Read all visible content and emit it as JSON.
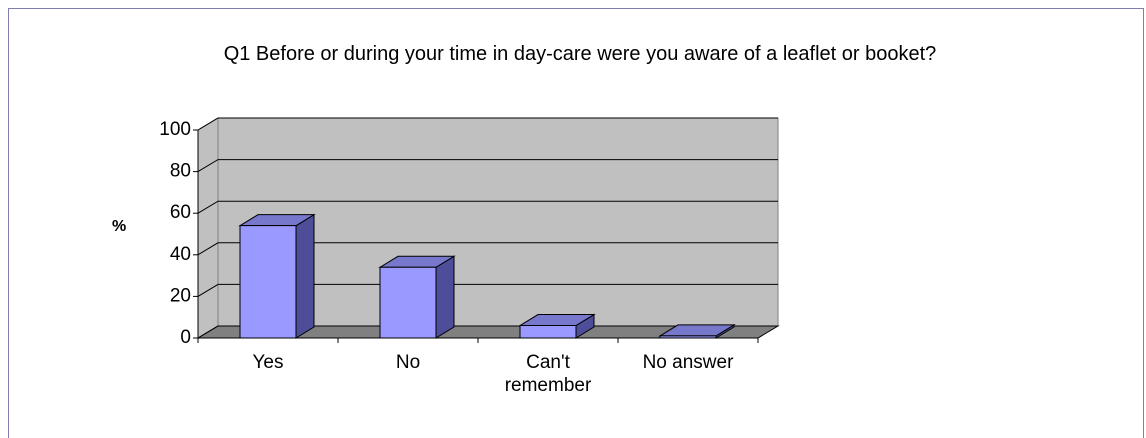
{
  "chart_data": {
    "type": "bar3d",
    "title": "Q1 Before or during your time in day-care were you aware of a leaflet or booket?",
    "y_label": "%",
    "categories": [
      "Yes",
      "No",
      "Can't remember",
      "No answer"
    ],
    "values": [
      54,
      34,
      6,
      1
    ],
    "color": "#9999ff",
    "ylim": [
      0,
      100
    ],
    "yticks": [
      0,
      20,
      40,
      60,
      80,
      100
    ],
    "grid": true
  }
}
